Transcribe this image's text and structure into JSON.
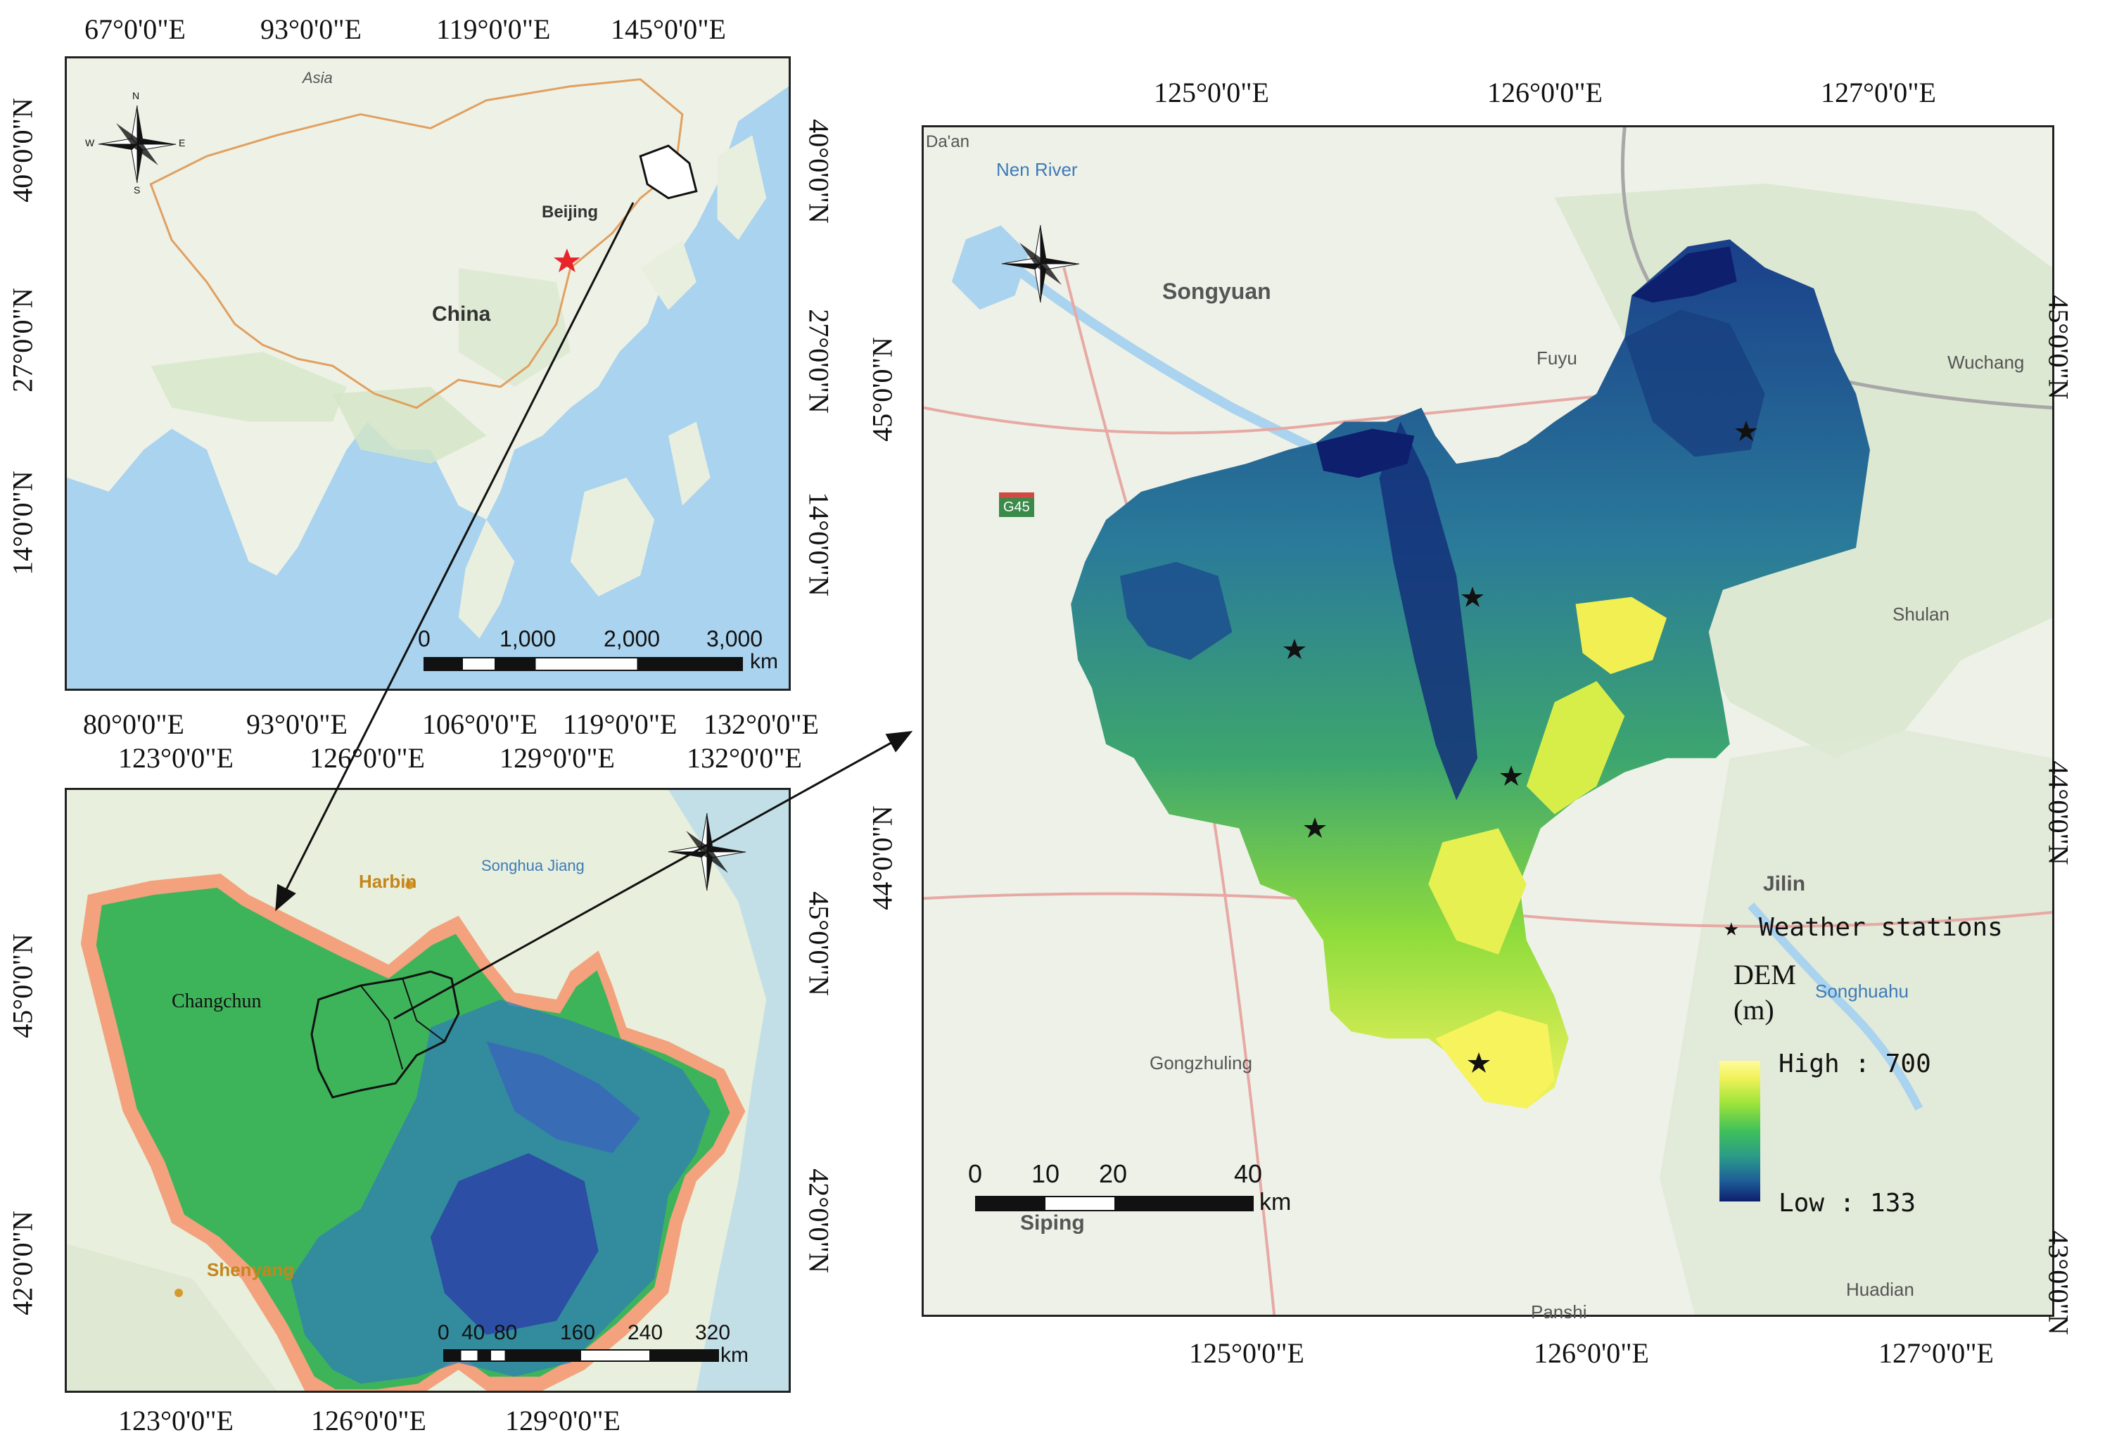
{
  "top_left_map": {
    "top_ticks": [
      "67°0'0\"E",
      "93°0'0\"E",
      "119°0'0\"E",
      "145°0'0\"E"
    ],
    "bottom_ticks": [
      "80°0'0\"E",
      "93°0'0\"E",
      "106°0'0\"E",
      "119°0'0\"E",
      "132°0'0\"E"
    ],
    "left_ticks": [
      "40°0'0\"N",
      "27°0'0\"N",
      "14°0'0\"N"
    ],
    "right_ticks": [
      "40°0'0\"N",
      "27°0'0\"N",
      "14°0'0\"N"
    ],
    "labels": {
      "asia": "Asia",
      "china": "China",
      "beijing": "Beijing"
    },
    "scale": {
      "ticks": [
        "0",
        "1,000",
        "2,000",
        "3,000"
      ],
      "unit": "km"
    }
  },
  "bottom_left_map": {
    "top_ticks": [
      "123°0'0\"E",
      "126°0'0\"E",
      "129°0'0\"E",
      "132°0'0\"E"
    ],
    "bottom_ticks": [
      "123°0'0\"E",
      "126°0'0\"E",
      "129°0'0\"E"
    ],
    "left_ticks": [
      "45°0'0\"N",
      "42°0'0\"N"
    ],
    "right_ticks": [
      "45°0'0\"N",
      "42°0'0\"N"
    ],
    "labels": {
      "harbin": "Harbin",
      "songhua_jiang": "Songhua Jiang",
      "changchun": "Changchun",
      "shenyang": "Shenyang"
    },
    "scale": {
      "ticks": [
        "0",
        "40",
        "80",
        "160",
        "240",
        "320"
      ],
      "unit": "km"
    }
  },
  "right_map": {
    "top_ticks": [
      "125°0'0\"E",
      "126°0'0\"E",
      "127°0'0\"E"
    ],
    "bottom_ticks": [
      "125°0'0\"E",
      "126°0'0\"E",
      "127°0'0\"E"
    ],
    "left_ticks": [
      "45°0'0\"N",
      "44°0'0\"N"
    ],
    "right_ticks": [
      "45°0'0\"N",
      "44°0'0\"N",
      "43°0'0\"N"
    ],
    "labels": {
      "daan": "Da'an",
      "nen_river": "Nen River",
      "songyuan": "Songyuan",
      "fuyu": "Fuyu",
      "wuchang": "Wuchang",
      "g45": "G45",
      "shulan": "Shulan",
      "jilin": "Jilin",
      "songhuahu": "Songhuahu",
      "gongzhuling": "Gongzhuling",
      "siping": "Siping",
      "huadian": "Huadian",
      "panshi": "Panshi"
    },
    "scale": {
      "ticks": [
        "0",
        "10",
        "20",
        "40"
      ],
      "unit": "km"
    },
    "legend": {
      "stations": "Weather stations",
      "dem_title": "DEM",
      "dem_unit": "(m)",
      "high": "High : 700",
      "low": "Low  : 133"
    }
  },
  "compass": {
    "n": "N",
    "s": "S",
    "e": "E",
    "w": "W"
  },
  "colors": {
    "water": "#a9d3ee",
    "land": "#eef1e6",
    "dem_low": "#0e1f6e",
    "dem_high": "#fffb9e",
    "buffer": "#f3a27d",
    "province": "#3eb45a"
  }
}
